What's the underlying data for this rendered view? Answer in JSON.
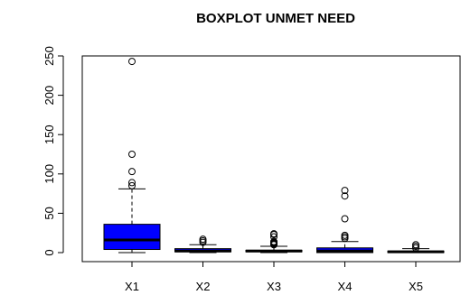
{
  "chart_data": {
    "type": "boxplot",
    "title": "BOXPLOT UNMET NEED",
    "xlabel": "",
    "ylabel": "",
    "ylim": [
      -5,
      255
    ],
    "yticks": [
      0,
      50,
      100,
      150,
      200,
      250
    ],
    "grid": false,
    "box_color": "#0000ff",
    "categories": [
      "X1",
      "X2",
      "X3",
      "X4",
      "X5"
    ],
    "series": [
      {
        "category": "X1",
        "min": 0,
        "q1": 4,
        "median": 16,
        "q3": 36,
        "max": 81,
        "outliers": [
          85,
          89,
          103,
          125,
          243
        ]
      },
      {
        "category": "X2",
        "min": 0,
        "q1": 1,
        "median": 2,
        "q3": 5,
        "max": 10,
        "outliers": [
          13,
          15,
          17
        ]
      },
      {
        "category": "X3",
        "min": 0,
        "q1": 1,
        "median": 2,
        "q3": 3,
        "max": 8,
        "outliers": [
          10,
          11,
          12,
          13,
          14,
          20,
          23,
          24
        ]
      },
      {
        "category": "X4",
        "min": 0,
        "q1": 0,
        "median": 2,
        "q3": 6,
        "max": 14,
        "outliers": [
          18,
          20,
          22,
          43,
          72,
          79
        ]
      },
      {
        "category": "X5",
        "min": 0,
        "q1": 0,
        "median": 1,
        "q3": 2,
        "max": 5,
        "outliers": [
          6,
          8,
          10
        ]
      }
    ]
  }
}
